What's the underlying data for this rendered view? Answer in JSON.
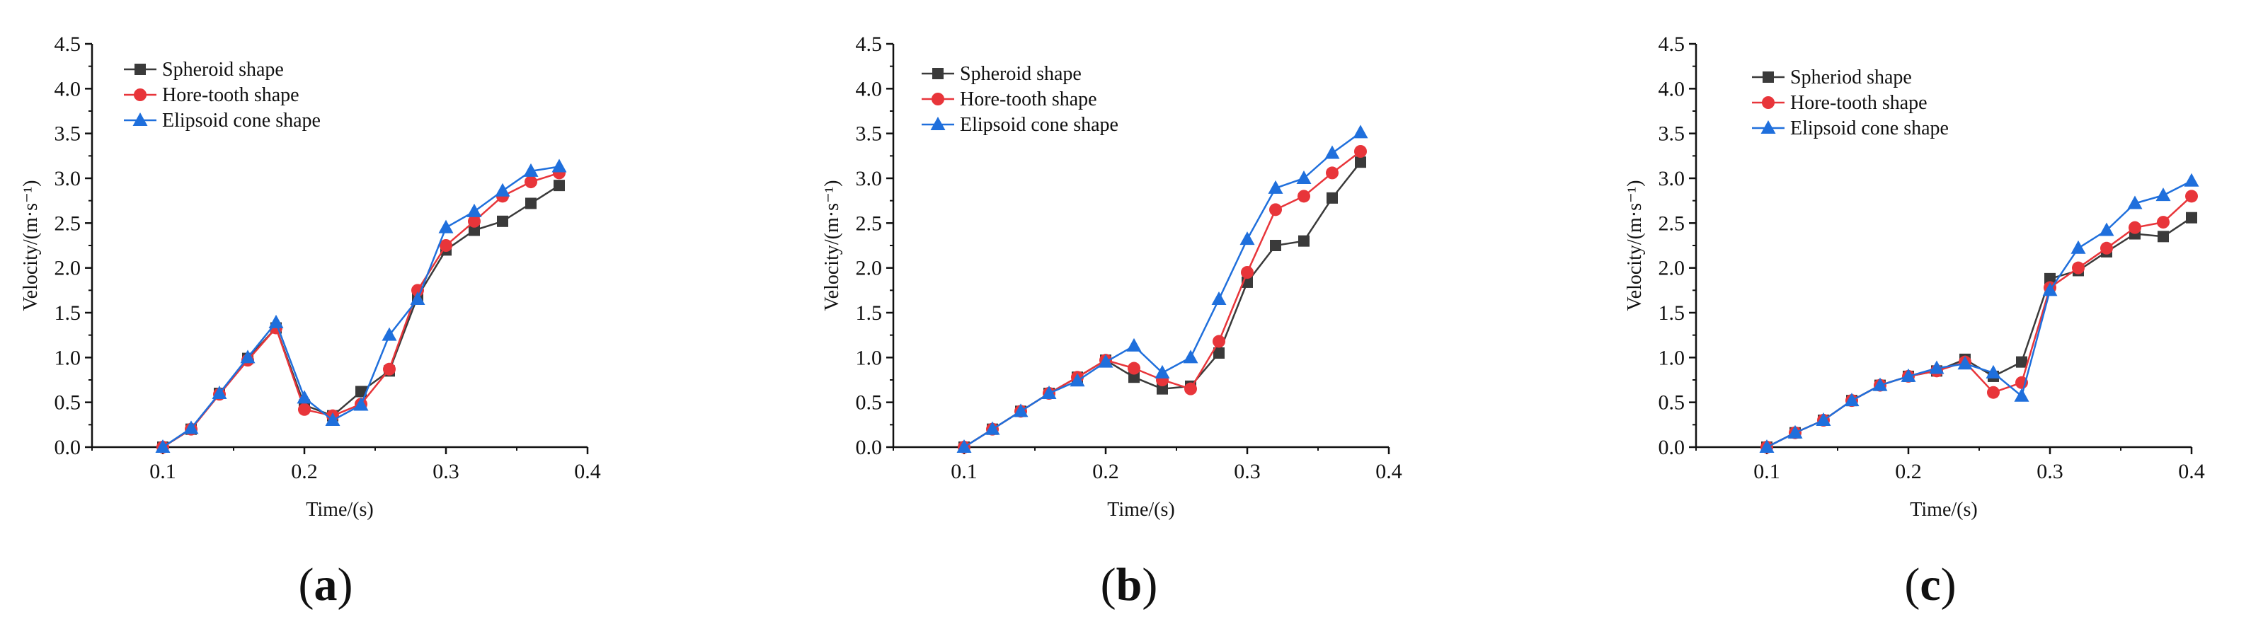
{
  "chart_data": [
    {
      "type": "line",
      "panel_label": "(a)",
      "panel_letter": "a",
      "xlabel": "Time/(s)",
      "ylabel": "Velocity/(m·s⁻¹)",
      "xlim": [
        0.05,
        0.4
      ],
      "ylim": [
        0,
        4.5
      ],
      "x_ticks": [
        "0.1",
        "0.2",
        "0.3",
        "0.4"
      ],
      "y_ticks": [
        "0.0",
        "0.5",
        "1.0",
        "1.5",
        "2.0",
        "2.5",
        "3.0",
        "3.5",
        "4.0",
        "4.5"
      ],
      "legend_position": "top-left",
      "series": [
        {
          "name": "Spheroid shape",
          "color": "#3a3a3a",
          "marker": "square",
          "x": [
            0.1,
            0.12,
            0.14,
            0.16,
            0.18,
            0.2,
            0.22,
            0.24,
            0.26,
            0.28,
            0.3,
            0.32,
            0.34,
            0.36,
            0.38
          ],
          "y": [
            0.0,
            0.2,
            0.6,
            0.99,
            1.33,
            0.47,
            0.35,
            0.62,
            0.85,
            1.68,
            2.2,
            2.42,
            2.52,
            2.72,
            2.92
          ]
        },
        {
          "name": "Hore-tooth shape",
          "color": "#e8353a",
          "marker": "circle",
          "x": [
            0.1,
            0.12,
            0.14,
            0.16,
            0.18,
            0.2,
            0.22,
            0.24,
            0.26,
            0.28,
            0.3,
            0.32,
            0.34,
            0.36,
            0.38
          ],
          "y": [
            0.0,
            0.2,
            0.59,
            0.97,
            1.33,
            0.42,
            0.35,
            0.48,
            0.87,
            1.75,
            2.25,
            2.52,
            2.8,
            2.96,
            3.06
          ]
        },
        {
          "name": "Elipsoid cone shape",
          "color": "#1f6fdc",
          "marker": "triangle",
          "x": [
            0.1,
            0.12,
            0.14,
            0.16,
            0.18,
            0.2,
            0.22,
            0.24,
            0.26,
            0.28,
            0.3,
            0.32,
            0.34,
            0.36,
            0.38
          ],
          "y": [
            0.0,
            0.21,
            0.6,
            1.0,
            1.39,
            0.55,
            0.3,
            0.47,
            1.25,
            1.65,
            2.45,
            2.63,
            2.86,
            3.08,
            3.13
          ]
        }
      ]
    },
    {
      "type": "line",
      "panel_label": "(b)",
      "panel_letter": "b",
      "xlabel": "Time/(s)",
      "ylabel": "Velocity/(m·s⁻¹)",
      "xlim": [
        0.05,
        0.4
      ],
      "ylim": [
        0,
        4.5
      ],
      "x_ticks": [
        "0.1",
        "0.2",
        "0.3",
        "0.4"
      ],
      "y_ticks": [
        "0.0",
        "0.5",
        "1.0",
        "1.5",
        "2.0",
        "2.5",
        "3.0",
        "3.5",
        "4.0",
        "4.5"
      ],
      "legend_position": "top-left",
      "series": [
        {
          "name": "Spheroid shape",
          "color": "#3a3a3a",
          "marker": "square",
          "x": [
            0.1,
            0.12,
            0.14,
            0.16,
            0.18,
            0.2,
            0.22,
            0.24,
            0.26,
            0.28,
            0.3,
            0.32,
            0.34,
            0.36,
            0.38
          ],
          "y": [
            0.0,
            0.2,
            0.4,
            0.6,
            0.78,
            0.97,
            0.78,
            0.65,
            0.68,
            1.05,
            1.84,
            2.25,
            2.3,
            2.78,
            3.18
          ]
        },
        {
          "name": "Hore-tooth shape",
          "color": "#e8353a",
          "marker": "circle",
          "x": [
            0.1,
            0.12,
            0.14,
            0.16,
            0.18,
            0.2,
            0.22,
            0.24,
            0.26,
            0.28,
            0.3,
            0.32,
            0.34,
            0.36,
            0.38
          ],
          "y": [
            0.0,
            0.2,
            0.4,
            0.6,
            0.78,
            0.97,
            0.88,
            0.75,
            0.65,
            1.18,
            1.95,
            2.65,
            2.8,
            3.06,
            3.3
          ]
        },
        {
          "name": "Elipsoid cone shape",
          "color": "#1f6fdc",
          "marker": "triangle",
          "x": [
            0.1,
            0.12,
            0.14,
            0.16,
            0.18,
            0.2,
            0.22,
            0.24,
            0.26,
            0.28,
            0.3,
            0.32,
            0.34,
            0.36,
            0.38
          ],
          "y": [
            0.0,
            0.2,
            0.4,
            0.6,
            0.74,
            0.95,
            1.13,
            0.83,
            1.0,
            1.65,
            2.32,
            2.89,
            3.0,
            3.28,
            3.51
          ]
        }
      ]
    },
    {
      "type": "line",
      "panel_label": "(c)",
      "panel_letter": "c",
      "xlabel": "Time/(s)",
      "ylabel": "Velocity/(m·s⁻¹)",
      "xlim": [
        0.05,
        0.4
      ],
      "ylim": [
        0,
        4.5
      ],
      "x_ticks": [
        "0.1",
        "0.2",
        "0.3",
        "0.4"
      ],
      "y_ticks": [
        "0.0",
        "0.5",
        "1.0",
        "1.5",
        "2.0",
        "2.5",
        "3.0",
        "3.5",
        "4.0",
        "4.5"
      ],
      "legend_position": "top-left",
      "series": [
        {
          "name": "Spheriod shape",
          "color": "#3a3a3a",
          "marker": "square",
          "x": [
            0.1,
            0.12,
            0.14,
            0.16,
            0.18,
            0.2,
            0.22,
            0.24,
            0.26,
            0.28,
            0.3,
            0.32,
            0.34,
            0.36,
            0.38,
            0.4
          ],
          "y": [
            0.0,
            0.16,
            0.3,
            0.52,
            0.69,
            0.79,
            0.85,
            0.98,
            0.79,
            0.95,
            1.88,
            1.97,
            2.18,
            2.38,
            2.35,
            2.56
          ]
        },
        {
          "name": "Hore-tooth shape",
          "color": "#e8353a",
          "marker": "circle",
          "x": [
            0.1,
            0.12,
            0.14,
            0.16,
            0.18,
            0.2,
            0.22,
            0.24,
            0.26,
            0.28,
            0.3,
            0.32,
            0.34,
            0.36,
            0.38,
            0.4
          ],
          "y": [
            0.0,
            0.16,
            0.3,
            0.52,
            0.69,
            0.79,
            0.85,
            0.95,
            0.61,
            0.72,
            1.78,
            2.0,
            2.22,
            2.45,
            2.51,
            2.8
          ]
        },
        {
          "name": "Elipsoid cone shape",
          "color": "#1f6fdc",
          "marker": "triangle",
          "x": [
            0.1,
            0.12,
            0.14,
            0.16,
            0.18,
            0.2,
            0.22,
            0.24,
            0.26,
            0.28,
            0.3,
            0.32,
            0.34,
            0.36,
            0.38,
            0.4
          ],
          "y": [
            0.0,
            0.16,
            0.3,
            0.52,
            0.69,
            0.79,
            0.88,
            0.93,
            0.83,
            0.57,
            1.75,
            2.22,
            2.42,
            2.72,
            2.81,
            2.97
          ]
        }
      ]
    }
  ]
}
